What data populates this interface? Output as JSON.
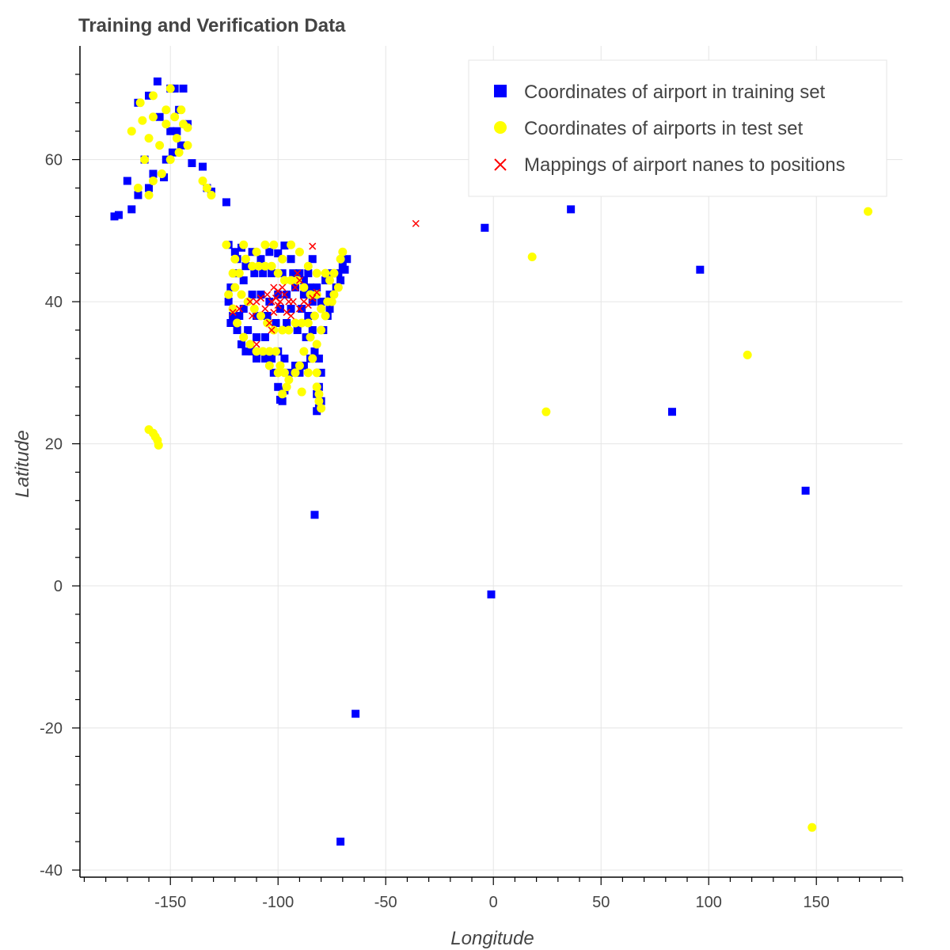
{
  "chart_data": {
    "type": "scatter",
    "title": "Training and Verification Data",
    "xlabel": "Longitude",
    "ylabel": "Latitude",
    "xlim": [
      -192,
      190
    ],
    "ylim": [
      -41,
      76
    ],
    "x_ticks": [
      -150,
      -100,
      -50,
      0,
      50,
      100,
      150
    ],
    "y_ticks": [
      -40,
      -20,
      0,
      20,
      40,
      60
    ],
    "x_tick_labels": [
      "-150",
      "-100",
      "-50",
      "0",
      "50",
      "100",
      "150"
    ],
    "y_tick_labels": [
      "-40",
      "-20",
      "0",
      "20",
      "40",
      "60"
    ],
    "grid": true,
    "legend_position": "top-right",
    "series": [
      {
        "name": "Coordinates of airport in training set",
        "marker": "square",
        "color": "#0000ff",
        "points": [
          [
            -156,
            71
          ],
          [
            -165,
            68
          ],
          [
            -160,
            69
          ],
          [
            -150,
            70
          ],
          [
            -148,
            70
          ],
          [
            -144,
            70
          ],
          [
            -155,
            66
          ],
          [
            -150,
            64
          ],
          [
            -147,
            64
          ],
          [
            -142,
            65
          ],
          [
            -145,
            62
          ],
          [
            -152,
            60
          ],
          [
            -149,
            61
          ],
          [
            -140,
            59.5
          ],
          [
            -135,
            59
          ],
          [
            -133,
            56
          ],
          [
            -131,
            55.5
          ],
          [
            -162,
            60
          ],
          [
            -165,
            55
          ],
          [
            -170,
            57
          ],
          [
            -176,
            52
          ],
          [
            -174,
            52.2
          ],
          [
            -168,
            53
          ],
          [
            -124,
            54
          ],
          [
            -160,
            56
          ],
          [
            -158,
            58
          ],
          [
            -153,
            57.5
          ],
          [
            -146,
            67
          ],
          [
            -123,
            48
          ],
          [
            -120,
            47
          ],
          [
            -117,
            47.6
          ],
          [
            -112,
            47
          ],
          [
            -108,
            46
          ],
          [
            -104,
            47
          ],
          [
            -100,
            46.8
          ],
          [
            -97,
            47.9
          ],
          [
            -94,
            46
          ],
          [
            -90,
            44
          ],
          [
            -88,
            43
          ],
          [
            -85,
            42
          ],
          [
            -82,
            42
          ],
          [
            -78,
            43
          ],
          [
            -75,
            44
          ],
          [
            -72,
            44
          ],
          [
            -70,
            45
          ],
          [
            -71,
            43
          ],
          [
            -73,
            42
          ],
          [
            -76,
            41
          ],
          [
            -80,
            40
          ],
          [
            -84,
            40
          ],
          [
            -88,
            41
          ],
          [
            -92,
            42
          ],
          [
            -96,
            41
          ],
          [
            -100,
            41
          ],
          [
            -104,
            40
          ],
          [
            -108,
            41
          ],
          [
            -112,
            41
          ],
          [
            -116,
            43
          ],
          [
            -120,
            44
          ],
          [
            -122,
            42
          ],
          [
            -123,
            40
          ],
          [
            -121,
            38
          ],
          [
            -119,
            36
          ],
          [
            -117,
            34
          ],
          [
            -115,
            33
          ],
          [
            -112,
            33
          ],
          [
            -110,
            32
          ],
          [
            -106,
            32
          ],
          [
            -103,
            32
          ],
          [
            -100,
            33
          ],
          [
            -97,
            32
          ],
          [
            -95,
            30
          ],
          [
            -92,
            31
          ],
          [
            -90,
            30
          ],
          [
            -88,
            31
          ],
          [
            -85,
            32
          ],
          [
            -83,
            33
          ],
          [
            -81,
            32
          ],
          [
            -80,
            30
          ],
          [
            -81,
            28
          ],
          [
            -82,
            27
          ],
          [
            -80,
            26
          ],
          [
            -81,
            25
          ],
          [
            -82,
            24.6
          ],
          [
            -98,
            26
          ],
          [
            -97,
            27.5
          ],
          [
            -99,
            26.2
          ],
          [
            -100,
            28
          ],
          [
            -102,
            30
          ],
          [
            -106,
            35
          ],
          [
            -110,
            35
          ],
          [
            -114,
            36
          ],
          [
            -118,
            38
          ],
          [
            -122,
            37
          ],
          [
            -116,
            39
          ],
          [
            -110,
            38
          ],
          [
            -105,
            38
          ],
          [
            -101,
            37
          ],
          [
            -96,
            37
          ],
          [
            -91,
            36
          ],
          [
            -87,
            35
          ],
          [
            -84,
            36
          ],
          [
            -79,
            36
          ],
          [
            -77,
            38
          ],
          [
            -76,
            39
          ],
          [
            -86,
            38
          ],
          [
            -89,
            39
          ],
          [
            -94,
            39
          ],
          [
            -99,
            39
          ],
          [
            -103,
            44
          ],
          [
            -107,
            44
          ],
          [
            -111,
            44
          ],
          [
            -115,
            45
          ],
          [
            -119,
            46
          ],
          [
            -98,
            44
          ],
          [
            -93,
            44
          ],
          [
            -86,
            44
          ],
          [
            -84,
            46
          ],
          [
            -68,
            46
          ],
          [
            -69,
            44.5
          ],
          [
            -83,
            10
          ],
          [
            -1,
            -1.2
          ],
          [
            -64,
            -18
          ],
          [
            -71,
            -36
          ],
          [
            -4,
            50.4
          ],
          [
            36,
            53
          ],
          [
            96,
            44.5
          ],
          [
            83,
            24.5
          ],
          [
            145,
            13.4
          ]
        ]
      },
      {
        "name": "Coordinates of airports in test set",
        "marker": "circle",
        "color": "#ffff00",
        "points": [
          [
            -150,
            70
          ],
          [
            -164,
            68
          ],
          [
            -158,
            66
          ],
          [
            -152,
            65
          ],
          [
            -148,
            66
          ],
          [
            -145,
            67
          ],
          [
            -160,
            63
          ],
          [
            -155,
            62
          ],
          [
            -150,
            60
          ],
          [
            -146,
            61
          ],
          [
            -142,
            62
          ],
          [
            -168,
            64
          ],
          [
            -162,
            60
          ],
          [
            -158,
            57
          ],
          [
            -154,
            58
          ],
          [
            -165,
            56
          ],
          [
            -160,
            55
          ],
          [
            -135,
            57
          ],
          [
            -133,
            56
          ],
          [
            -131,
            55
          ],
          [
            -147,
            63
          ],
          [
            -142,
            64.5
          ],
          [
            -144,
            65
          ],
          [
            -152,
            67
          ],
          [
            -158,
            69
          ],
          [
            -163,
            65.5
          ],
          [
            -124,
            48
          ],
          [
            -120,
            46
          ],
          [
            -116,
            48
          ],
          [
            -110,
            47
          ],
          [
            -106,
            48
          ],
          [
            -102,
            48
          ],
          [
            -98,
            46
          ],
          [
            -94,
            48
          ],
          [
            -90,
            47
          ],
          [
            -86,
            45
          ],
          [
            -82,
            44
          ],
          [
            -78,
            44
          ],
          [
            -74,
            44
          ],
          [
            -71,
            46
          ],
          [
            -72,
            42
          ],
          [
            -75,
            40
          ],
          [
            -78,
            38
          ],
          [
            -80,
            36
          ],
          [
            -82,
            34
          ],
          [
            -84,
            32
          ],
          [
            -86,
            30
          ],
          [
            -82,
            28
          ],
          [
            -81,
            26
          ],
          [
            -80,
            25
          ],
          [
            -81,
            27
          ],
          [
            -82,
            30
          ],
          [
            -85,
            35
          ],
          [
            -88,
            33
          ],
          [
            -90,
            31
          ],
          [
            -92,
            30
          ],
          [
            -95,
            29
          ],
          [
            -97,
            30
          ],
          [
            -99,
            31
          ],
          [
            -101,
            33
          ],
          [
            -104,
            33
          ],
          [
            -107,
            33
          ],
          [
            -110,
            33
          ],
          [
            -113,
            34
          ],
          [
            -116,
            35
          ],
          [
            -119,
            37
          ],
          [
            -121,
            39
          ],
          [
            -123,
            41
          ],
          [
            -120,
            42
          ],
          [
            -117,
            41
          ],
          [
            -114,
            40
          ],
          [
            -111,
            39
          ],
          [
            -108,
            38
          ],
          [
            -105,
            37
          ],
          [
            -102,
            36
          ],
          [
            -98,
            36
          ],
          [
            -95,
            36
          ],
          [
            -92,
            37
          ],
          [
            -89,
            37
          ],
          [
            -86,
            37
          ],
          [
            -83,
            38
          ],
          [
            -80,
            39
          ],
          [
            -77,
            40
          ],
          [
            -74,
            41
          ],
          [
            -88,
            42
          ],
          [
            -91,
            43
          ],
          [
            -94,
            43
          ],
          [
            -97,
            43
          ],
          [
            -100,
            44
          ],
          [
            -103,
            45
          ],
          [
            -106,
            45
          ],
          [
            -109,
            45
          ],
          [
            -112,
            45
          ],
          [
            -115,
            46
          ],
          [
            -118,
            44
          ],
          [
            -121,
            44
          ],
          [
            -96,
            28
          ],
          [
            -98,
            27
          ],
          [
            -89,
            27.3
          ],
          [
            -100,
            30
          ],
          [
            -104,
            31
          ],
          [
            -82,
            41
          ],
          [
            -85,
            41
          ],
          [
            -76,
            43
          ],
          [
            -70,
            47
          ],
          [
            -160,
            22
          ],
          [
            -158,
            21.5
          ],
          [
            -157,
            21
          ],
          [
            -156,
            20.5
          ],
          [
            -155.5,
            19.8
          ],
          [
            18,
            46.3
          ],
          [
            24.5,
            24.5
          ],
          [
            118,
            32.5
          ],
          [
            174,
            52.7
          ],
          [
            148,
            -34
          ]
        ]
      },
      {
        "name": "Mappings of airport nanes to positions",
        "marker": "x",
        "color": "#ff0000",
        "points": [
          [
            -36,
            51
          ],
          [
            -84,
            47.8
          ],
          [
            -110,
            34
          ],
          [
            -118,
            39
          ],
          [
            -121,
            38.5
          ],
          [
            -113,
            40
          ],
          [
            -108,
            40.5
          ],
          [
            -105,
            41
          ],
          [
            -103,
            40
          ],
          [
            -102,
            42
          ],
          [
            -101,
            40.5
          ],
          [
            -100,
            41.5
          ],
          [
            -99,
            40
          ],
          [
            -98,
            42
          ],
          [
            -100,
            39.5
          ],
          [
            -102,
            38.5
          ],
          [
            -104,
            37
          ],
          [
            -103,
            36
          ],
          [
            -97,
            41
          ],
          [
            -95,
            40
          ],
          [
            -96,
            38.5
          ],
          [
            -93,
            40
          ],
          [
            -92,
            42
          ],
          [
            -90,
            39
          ],
          [
            -90,
            43
          ],
          [
            -88,
            40
          ],
          [
            -86,
            39.5
          ],
          [
            -84,
            40.5
          ],
          [
            -82,
            41.3
          ],
          [
            -91,
            44
          ],
          [
            -94,
            38
          ],
          [
            -106,
            39
          ],
          [
            -110,
            40
          ],
          [
            -112,
            38
          ]
        ]
      }
    ]
  }
}
